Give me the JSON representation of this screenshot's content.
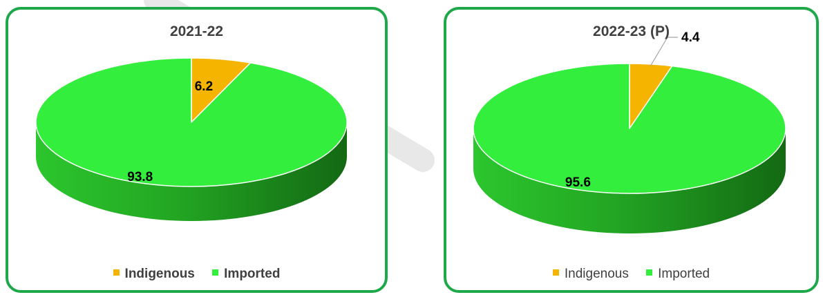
{
  "chart_data": [
    {
      "type": "pie",
      "title": "2021-22",
      "categories": [
        "Indigenous",
        "Imported"
      ],
      "values": [
        6.2,
        93.8
      ],
      "data_labels": [
        "6.2",
        "93.8"
      ],
      "colors": [
        "#f5b400",
        "#33ee3d"
      ],
      "legend": "bottom",
      "style": "3d"
    },
    {
      "type": "pie",
      "title": "2022-23 (P)",
      "categories": [
        "Indigenous",
        "Imported"
      ],
      "values": [
        4.4,
        95.6
      ],
      "data_labels": [
        "4.4",
        "95.6"
      ],
      "colors": [
        "#f5b400",
        "#33ee3d"
      ],
      "legend": "bottom",
      "style": "3d"
    }
  ]
}
